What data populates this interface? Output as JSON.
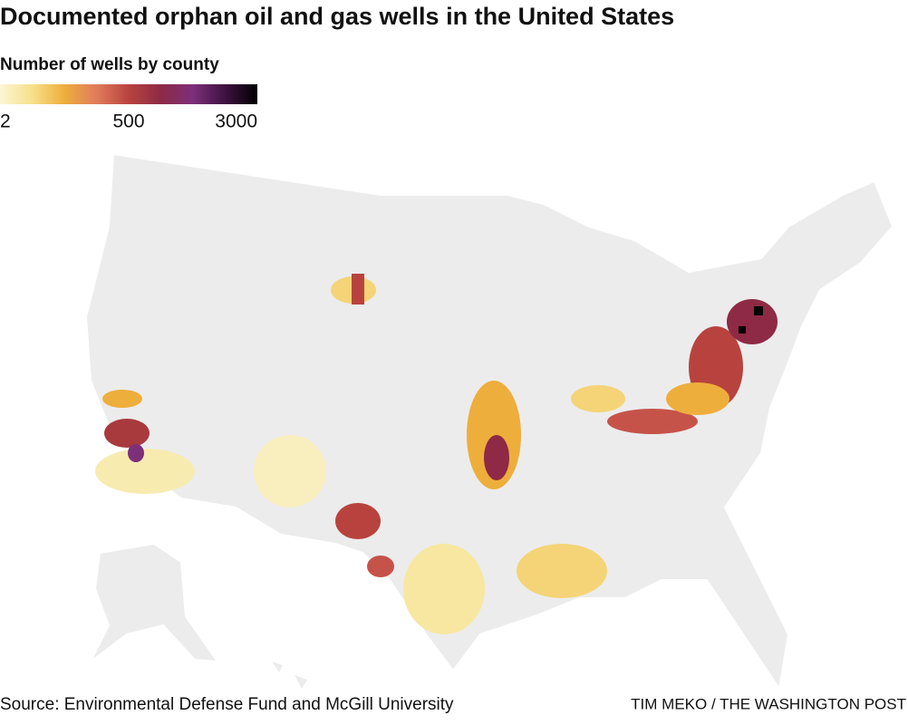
{
  "title": "Documented orphan oil and gas wells in the United States",
  "legend": {
    "title": "Number of wells by county",
    "ticks": [
      2,
      500,
      3000
    ],
    "colors": [
      "#fcf6d4",
      "#f7e08a",
      "#eeae3c",
      "#e07c5c",
      "#b8433e",
      "#8e2a45",
      "#7d2f7a",
      "#3d1240",
      "#000000"
    ]
  },
  "source": "Source: Environmental Defense Fund and McGill University",
  "credit": "TIM MEKO / THE WASHINGTON POST"
}
